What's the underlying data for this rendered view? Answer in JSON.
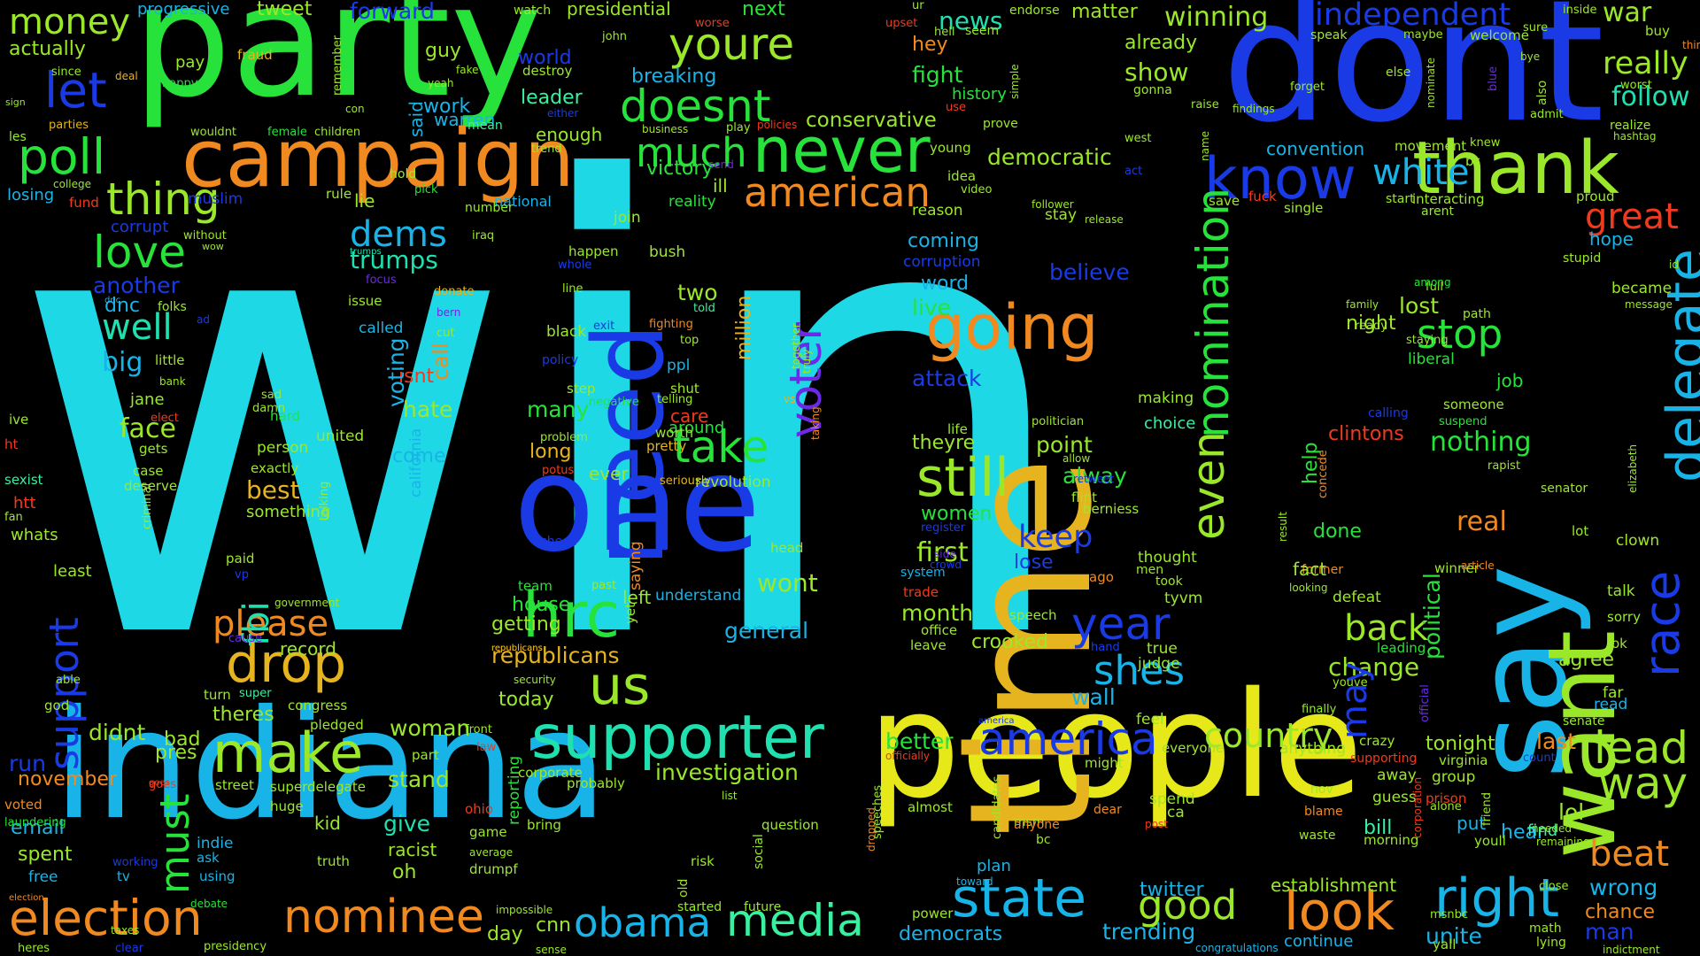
{
  "palette": {
    "cyan": "#1ed8e6",
    "green": "#27e23a",
    "lime": "#9be82a",
    "yellow": "#e6e81a",
    "gold": "#e6b41e",
    "orange": "#f08a20",
    "red": "#f03a1e",
    "blue": "#1a3ae6",
    "teal": "#20e0b0",
    "sky": "#18b4e8",
    "violet": "#6a2ae6",
    "mint": "#38f0a0"
  },
  "words": [
    "win",
    "party",
    "dont",
    "people",
    "indiana",
    "time",
    "one",
    "say",
    "want",
    "need",
    "campaign",
    "never",
    "thank",
    "know",
    "hrc",
    "supporter",
    "state",
    "right",
    "make",
    "going",
    "still",
    "nominee",
    "election",
    "america",
    "media",
    "obama",
    "delegate",
    "nomination",
    "voter",
    "drop",
    "us",
    "poll",
    "thing",
    "love",
    "american",
    "take",
    "lead",
    "way",
    "look",
    "year",
    "even",
    "doesnt",
    "youre",
    "white",
    "stop",
    "independent",
    "country",
    "beat",
    "trumps",
    "dems",
    "money",
    "let",
    "news",
    "winning",
    "really",
    "follow",
    "great",
    "race",
    "support",
    "must",
    "well",
    "please",
    "republicans",
    "much",
    "shes",
    "back",
    "change",
    "good",
    "big",
    "face",
    "fbi",
    "keep",
    "first",
    "theyre",
    "alway",
    "best",
    "believe",
    "point",
    "nothing",
    "real",
    "clintons",
    "another",
    "dnc",
    "women",
    "month",
    "crooked",
    "wall",
    "may",
    "political",
    "give",
    "email",
    "spent",
    "twitter",
    "tonight",
    "last",
    "lol",
    "wrong",
    "chance",
    "man",
    "unite",
    "trending",
    "democrats",
    "continue",
    "establishment",
    "bill",
    "hear",
    "put",
    "find",
    "ever",
    "long",
    "many",
    "two",
    "million",
    "care",
    "around",
    "pretty",
    "isnt",
    "voting",
    "hate",
    "call",
    "attack",
    "live",
    "word",
    "coming",
    "corruption",
    "democratic",
    "conservative",
    "victory",
    "ill",
    "reality",
    "fight",
    "history",
    "hey",
    "show",
    "already",
    "convention",
    "war",
    "presidential",
    "next",
    "forward",
    "tweet",
    "progressive",
    "actually",
    "pay",
    "fraud",
    "happy",
    "since",
    "deal",
    "losing",
    "fund",
    "corrupt",
    "muslim",
    "lie",
    "rule",
    "college",
    "parties",
    "sign",
    "les",
    "national",
    "leader",
    "warren",
    "enough",
    "world",
    "destroy",
    "breaking",
    "john",
    "guy",
    "fake",
    "yeah",
    "work",
    "said",
    "wouldnt",
    "female",
    "children",
    "mean",
    "better",
    "investigation",
    "america",
    "general",
    "wont",
    "understand",
    "left",
    "house",
    "getting",
    "today",
    "team",
    "republicans",
    "stand",
    "woman",
    "racist",
    "oh",
    "kid",
    "truth",
    "indie",
    "ask",
    "using",
    "tv",
    "working",
    "free",
    "sexist",
    "htt",
    "whats",
    "least",
    "fan",
    "able",
    "god",
    "run",
    "november",
    "voted",
    "laundering",
    "didnt",
    "pres",
    "bad",
    "theres",
    "congress",
    "pledged",
    "super",
    "turn",
    "cause",
    "record",
    "paid",
    "vp",
    "something",
    "exactly",
    "person",
    "case",
    "deserve",
    "gets",
    "hard",
    "elect",
    "jane",
    "little",
    "bank",
    "ive",
    "ht",
    "dnc",
    "folks",
    "ad",
    "issue",
    "focus",
    "called",
    "cut",
    "bern",
    "donate",
    "iraq",
    "join",
    "bush",
    "happen",
    "whole",
    "line",
    "black",
    "exit",
    "fighting",
    "top",
    "ppl",
    "told",
    "step",
    "negative",
    "telling",
    "shut",
    "policy",
    "problem",
    "worth",
    "seriously",
    "revolution",
    "truly",
    "together",
    "vs",
    "taking",
    "potus",
    "saying",
    "yet",
    "past",
    "check",
    "head",
    "election",
    "reporting",
    "corporate",
    "bring",
    "cnn",
    "day",
    "started",
    "future",
    "impossible",
    "sense",
    "risk",
    "old",
    "social",
    "question",
    "presidency",
    "clear",
    "heres",
    "taxes",
    "debate",
    "average",
    "drumpf",
    "game",
    "ohio",
    "front",
    "law",
    "part",
    "superdelegate",
    "huge",
    "street",
    "goes",
    "probably",
    "list",
    "speeches",
    "dropped",
    "officially",
    "candidates",
    "almost",
    "power",
    "toward",
    "plan",
    "msm",
    "anyone",
    "bc",
    "dear",
    "might",
    "everyone",
    "spend",
    "ca",
    "post",
    "feel",
    "judge",
    "true",
    "hand",
    "ago",
    "men",
    "took",
    "tyvm",
    "thought",
    "crowd",
    "side",
    "trade",
    "leave",
    "office",
    "system",
    "speech",
    "lose",
    "register",
    "berniess",
    "flint",
    "allow",
    "retweet",
    "help",
    "concede",
    "result",
    "done",
    "making",
    "choice",
    "life",
    "politician",
    "suspend",
    "calling",
    "someone",
    "job",
    "liberal",
    "path",
    "staying",
    "ready",
    "night",
    "lost",
    "family",
    "full",
    "among",
    "defeat",
    "winner",
    "former",
    "looking",
    "fact",
    "article",
    "rapist",
    "senator",
    "sorry",
    "talk",
    "clown",
    "lot",
    "elizabeth",
    "agree",
    "far",
    "read",
    "senate",
    "ok",
    "became",
    "id",
    "message",
    "stupid",
    "hope",
    "proud",
    "start",
    "single",
    "fuck",
    "interacting",
    "arent",
    "save",
    "findings",
    "follower",
    "release",
    "stay",
    "west",
    "act",
    "name",
    "movement",
    "bs",
    "knew",
    "blue",
    "admit",
    "also",
    "realize",
    "hashtag",
    "worst",
    "buy",
    "thinks",
    "inside",
    "maybe",
    "welcome",
    "bye",
    "sure",
    "speak",
    "forget",
    "else",
    "gonna",
    "raise",
    "nominate",
    "matter",
    "endorse",
    "seem",
    "hell",
    "use",
    "prove",
    "young",
    "idea",
    "video",
    "reason",
    "upset",
    "worse",
    "watch",
    "policies",
    "play",
    "business",
    "trend",
    "either",
    "con",
    "remember",
    "simple",
    "send",
    "hold",
    "pick",
    "number",
    "without",
    "wow",
    "ur",
    "youve",
    "leading",
    "supporting",
    "count",
    "official",
    "finally",
    "crazy",
    "anything",
    "guess",
    "away",
    "group",
    "virginia",
    "alone",
    "friend",
    "youll",
    "morning",
    "waste",
    "blame",
    "nov",
    "prison",
    "corporation",
    "msnbc",
    "math",
    "yall",
    "lying",
    "indictment",
    "close",
    "congratulations",
    "remaining",
    "needed",
    "united",
    "come",
    "california",
    "government",
    "criminal",
    "talking",
    "security",
    "republicans",
    "sad",
    "damn",
    "goes",
    "trumps"
  ]
}
